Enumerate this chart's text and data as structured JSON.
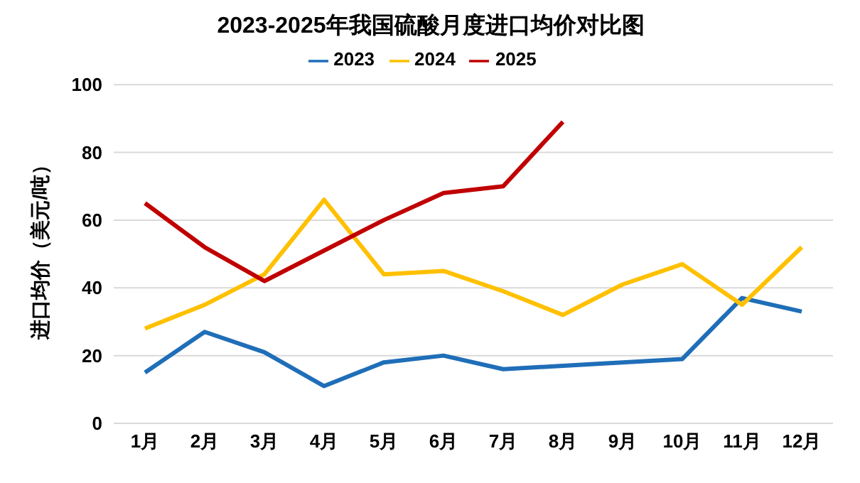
{
  "chart_data": {
    "type": "line",
    "title": "2023-2025年我国硫酸月度进口均价对比图",
    "ylabel": "进口均价（美元/吨）",
    "categories": [
      "1月",
      "2月",
      "3月",
      "4月",
      "5月",
      "6月",
      "7月",
      "8月",
      "9月",
      "10月",
      "11月",
      "12月"
    ],
    "series": [
      {
        "name": "2023",
        "color": "#1f6eb8",
        "values": [
          15,
          27,
          21,
          11,
          18,
          20,
          16,
          17,
          18,
          19,
          37,
          33
        ]
      },
      {
        "name": "2024",
        "color": "#ffc000",
        "values": [
          28,
          35,
          44,
          66,
          44,
          45,
          39,
          32,
          41,
          47,
          35,
          52
        ]
      },
      {
        "name": "2025",
        "color": "#c00000",
        "values": [
          65,
          52,
          42,
          51,
          60,
          68,
          70,
          89,
          null,
          null,
          null,
          null
        ]
      }
    ],
    "ylim": [
      0,
      100
    ],
    "yticks": [
      0,
      20,
      40,
      60,
      80,
      100
    ],
    "grid": "y",
    "legend": "top",
    "marker": "none",
    "line_style": "solid"
  }
}
